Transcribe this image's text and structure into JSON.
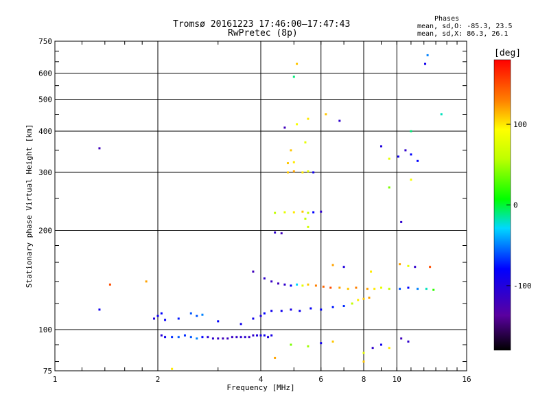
{
  "chart_data": {
    "type": "scatter",
    "title": "Tromsø 20161223 17:46:00–17:47:43",
    "subtitle": "RwPretec (8p)",
    "xlabel": "Frequency [MHz]",
    "ylabel": "Stationary phase Virtual Height [km]",
    "x_scale": "log",
    "y_scale": "log",
    "xlim": [
      1,
      16
    ],
    "ylim": [
      75,
      750
    ],
    "x_ticks": [
      1,
      2,
      4,
      6,
      8,
      10,
      16
    ],
    "y_ticks": [
      75,
      100,
      200,
      300,
      400,
      500,
      600,
      750
    ],
    "phase_info": {
      "header": "Phases",
      "line_o": "mean, sd,O: -85.3, 23.5",
      "line_x": "mean, sd,X:  86.3, 26.1"
    },
    "colorbar": {
      "label": "[deg]",
      "range": [
        -180,
        180
      ],
      "ticks": [
        100,
        0,
        -100
      ]
    },
    "series": [
      {
        "values": [
          [
            2.05,
            96,
            -105
          ],
          [
            2.1,
            95,
            -90
          ],
          [
            2.2,
            95,
            -70
          ],
          [
            2.3,
            95,
            -60
          ],
          [
            2.4,
            96,
            -70
          ],
          [
            2.5,
            95,
            -60
          ],
          [
            2.6,
            94,
            -50
          ],
          [
            2.7,
            95,
            -80
          ],
          [
            2.8,
            95,
            -105
          ],
          [
            2.9,
            94,
            -110
          ],
          [
            3.0,
            94,
            -115
          ],
          [
            3.1,
            94,
            -120
          ],
          [
            3.2,
            94,
            -118
          ],
          [
            3.3,
            95,
            -115
          ],
          [
            3.4,
            95,
            -112
          ],
          [
            3.5,
            95,
            -110
          ],
          [
            3.6,
            95,
            -108
          ],
          [
            3.7,
            95,
            -115
          ],
          [
            3.8,
            96,
            -110
          ],
          [
            3.9,
            96,
            -100
          ],
          [
            4.0,
            96,
            -95
          ],
          [
            4.1,
            96,
            -90
          ],
          [
            4.2,
            95,
            -100
          ],
          [
            4.3,
            96,
            -95
          ],
          [
            1.95,
            108,
            -100
          ],
          [
            2.0,
            110,
            -90
          ],
          [
            2.05,
            112,
            -80
          ],
          [
            2.1,
            107,
            -85
          ],
          [
            2.3,
            108,
            -75
          ],
          [
            2.5,
            112,
            -60
          ],
          [
            2.6,
            110,
            -60
          ],
          [
            2.7,
            111,
            -50
          ],
          [
            3.0,
            106,
            -80
          ],
          [
            3.5,
            104,
            -90
          ],
          [
            3.8,
            108,
            -90
          ],
          [
            4.0,
            110,
            -100
          ],
          [
            4.1,
            112,
            -80
          ],
          [
            4.3,
            114,
            -90
          ],
          [
            4.1,
            143,
            -110
          ],
          [
            4.3,
            140,
            -115
          ],
          [
            4.5,
            138,
            -120
          ],
          [
            4.7,
            137,
            -110
          ],
          [
            4.9,
            136,
            -80
          ],
          [
            5.1,
            137,
            -30
          ],
          [
            5.3,
            136,
            80
          ],
          [
            5.5,
            137,
            110
          ],
          [
            5.8,
            136,
            130
          ],
          [
            6.1,
            135,
            140
          ],
          [
            6.4,
            134,
            150
          ],
          [
            6.8,
            134,
            120
          ],
          [
            7.2,
            133,
            110
          ],
          [
            7.6,
            134,
            130
          ],
          [
            8.2,
            133,
            120
          ],
          [
            8.6,
            133,
            100
          ],
          [
            9.0,
            134,
            80
          ],
          [
            9.5,
            133,
            60
          ],
          [
            10.2,
            133,
            -60
          ],
          [
            10.8,
            134,
            -80
          ],
          [
            11.5,
            133,
            -50
          ],
          [
            12.2,
            133,
            -20
          ],
          [
            12.8,
            132,
            20
          ],
          [
            4.6,
            114,
            -90
          ],
          [
            4.9,
            115,
            -95
          ],
          [
            5.2,
            114,
            -90
          ],
          [
            5.6,
            116,
            -85
          ],
          [
            6.0,
            115,
            -80
          ],
          [
            6.5,
            117,
            -75
          ],
          [
            7.0,
            118,
            -70
          ],
          [
            7.4,
            120,
            60
          ],
          [
            7.7,
            123,
            100
          ],
          [
            8.0,
            124,
            110
          ],
          [
            8.3,
            125,
            120
          ],
          [
            4.4,
            197,
            -110
          ],
          [
            4.6,
            196,
            -120
          ],
          [
            4.4,
            226,
            60
          ],
          [
            4.7,
            227,
            80
          ],
          [
            5.0,
            227,
            100
          ],
          [
            5.3,
            228,
            110
          ],
          [
            5.5,
            226,
            60
          ],
          [
            5.7,
            227,
            -80
          ],
          [
            6.0,
            228,
            -110
          ],
          [
            4.8,
            300,
            110
          ],
          [
            5.0,
            302,
            120
          ],
          [
            5.3,
            300,
            100
          ],
          [
            5.5,
            302,
            80
          ],
          [
            5.7,
            300,
            -90
          ],
          [
            5.4,
            217,
            60
          ],
          [
            5.5,
            205,
            70
          ],
          [
            4.7,
            410,
            -120
          ],
          [
            5.1,
            420,
            90
          ],
          [
            5.5,
            436,
            100
          ],
          [
            6.2,
            450,
            110
          ],
          [
            6.8,
            430,
            -110
          ],
          [
            4.8,
            320,
            110
          ],
          [
            5.0,
            322,
            100
          ],
          [
            4.9,
            350,
            110
          ],
          [
            5.4,
            370,
            80
          ],
          [
            5.0,
            585,
            -10
          ],
          [
            5.1,
            640,
            110
          ],
          [
            9.0,
            360,
            -100
          ],
          [
            9.5,
            330,
            80
          ],
          [
            10.1,
            335,
            -90
          ],
          [
            10.6,
            350,
            -110
          ],
          [
            11.0,
            340,
            -80
          ],
          [
            11.5,
            325,
            -80
          ],
          [
            11.0,
            285,
            90
          ],
          [
            9.5,
            270,
            40
          ],
          [
            10.3,
            212,
            -110
          ],
          [
            12.3,
            680,
            -50
          ],
          [
            12.1,
            640,
            -90
          ],
          [
            13.5,
            450,
            -20
          ],
          [
            11.0,
            400,
            -10
          ],
          [
            1.35,
            355,
            -120
          ],
          [
            1.45,
            137,
            150
          ],
          [
            1.35,
            115,
            -90
          ],
          [
            1.85,
            140,
            120
          ],
          [
            4.9,
            90,
            40
          ],
          [
            5.5,
            89,
            50
          ],
          [
            6.0,
            91,
            -90
          ],
          [
            6.5,
            92,
            110
          ],
          [
            8.0,
            85,
            80
          ],
          [
            8.5,
            88,
            -110
          ],
          [
            9.0,
            90,
            -90
          ],
          [
            9.5,
            88,
            100
          ],
          [
            10.3,
            94,
            -120
          ],
          [
            10.8,
            92,
            -110
          ],
          [
            3.8,
            150,
            -120
          ],
          [
            6.5,
            157,
            120
          ],
          [
            7.0,
            155,
            -100
          ],
          [
            8.4,
            150,
            100
          ],
          [
            10.2,
            158,
            120
          ],
          [
            10.8,
            156,
            80
          ],
          [
            11.3,
            155,
            -110
          ],
          [
            12.5,
            155,
            150
          ],
          [
            4.4,
            82,
            120
          ],
          [
            2.2,
            76,
            100
          ],
          [
            8.0,
            80,
            110
          ]
        ]
      }
    ]
  }
}
